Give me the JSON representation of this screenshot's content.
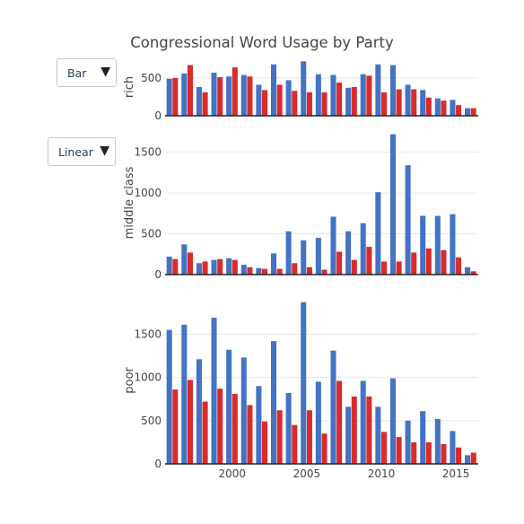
{
  "controls": {
    "type_selector": {
      "selected": "Bar",
      "arrow": "▼"
    },
    "scale_selector": {
      "selected": "Linear",
      "arrow": "▼"
    }
  },
  "colors": {
    "democrat": "#4472c4",
    "republican": "#d92b2b",
    "grid": "#e6e6e6",
    "text": "#444444"
  },
  "chart_data": {
    "type": "bar",
    "title": "Congressional Word Usage by Party",
    "x": [
      1996,
      1997,
      1998,
      1999,
      2000,
      2001,
      2002,
      2003,
      2004,
      2005,
      2006,
      2007,
      2008,
      2009,
      2010,
      2011,
      2012,
      2013,
      2014,
      2015,
      2016
    ],
    "xticks": [
      2000,
      2005,
      2010,
      2015
    ],
    "xlim": [
      1995.5,
      2016.5
    ],
    "panels": [
      {
        "ylabel": "rich",
        "ylim": [
          0,
          760
        ],
        "yticks": [
          0,
          500
        ],
        "series": [
          {
            "values": [
              490,
              560,
              380,
              570,
              520,
              540,
              410,
              680,
              470,
              720,
              550,
              540,
              370,
              550,
              680,
              670,
              410,
              340,
              230,
              210,
              100
            ]
          },
          {
            "values": [
              500,
              670,
              310,
              510,
              640,
              520,
              340,
              410,
              330,
              310,
              310,
              440,
              380,
              530,
              310,
              350,
              350,
              240,
              200,
              140,
              100
            ]
          }
        ]
      },
      {
        "ylabel": "middle class",
        "ylim": [
          0,
          1760
        ],
        "yticks": [
          0,
          500,
          1000,
          1500
        ],
        "series": [
          {
            "values": [
              220,
              370,
              140,
              180,
              200,
              120,
              80,
              260,
              530,
              420,
              450,
              710,
              530,
              630,
              1010,
              1720,
              1340,
              720,
              720,
              740,
              90
            ]
          },
          {
            "values": [
              190,
              270,
              160,
              190,
              180,
              90,
              70,
              70,
              140,
              90,
              60,
              280,
              180,
              340,
              160,
              160,
              270,
              320,
              300,
              210,
              40
            ]
          }
        ]
      },
      {
        "ylabel": "poor",
        "ylim": [
          0,
          1930
        ],
        "yticks": [
          0,
          500,
          1000,
          1500
        ],
        "series": [
          {
            "values": [
              1550,
              1610,
              1210,
              1690,
              1320,
              1230,
              900,
              1420,
              820,
              1870,
              950,
              1310,
              660,
              960,
              660,
              990,
              500,
              610,
              520,
              380,
              100
            ]
          },
          {
            "values": [
              860,
              970,
              720,
              870,
              810,
              680,
              490,
              620,
              450,
              620,
              350,
              960,
              780,
              780,
              370,
              310,
              250,
              250,
              230,
              190,
              130
            ]
          }
        ]
      }
    ]
  }
}
